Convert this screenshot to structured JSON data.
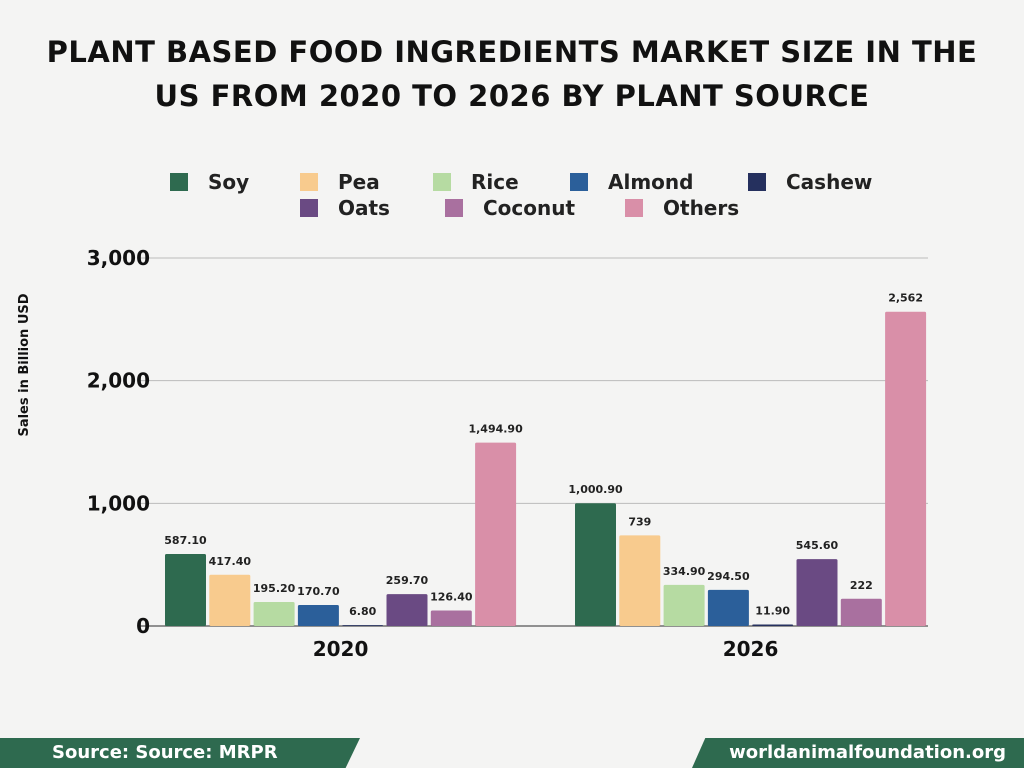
{
  "chart_data": {
    "type": "bar",
    "title": "PLANT BASED FOOD INGREDIENTS MARKET SIZE IN THE US FROM 2020 TO 2026 BY PLANT SOURCE",
    "ylabel": "Sales in Billion USD",
    "xlabel": "",
    "categories": [
      "2020",
      "2026"
    ],
    "ylim": [
      0,
      3000
    ],
    "yticks": [
      0,
      1000,
      2000,
      3000
    ],
    "ytick_labels": [
      "0",
      "1,000",
      "2,000",
      "3,000"
    ],
    "grid": true,
    "legend_position": "top",
    "series": [
      {
        "name": "Soy",
        "color": "#2e6a4f",
        "values": [
          587.1,
          1000.9
        ],
        "labels": [
          "587.10",
          "1,000.90"
        ]
      },
      {
        "name": "Pea",
        "color": "#f8cb8e",
        "values": [
          417.4,
          739
        ],
        "labels": [
          "417.40",
          "739"
        ]
      },
      {
        "name": "Rice",
        "color": "#b6dba2",
        "values": [
          195.2,
          334.9
        ],
        "labels": [
          "195.20",
          "334.90"
        ]
      },
      {
        "name": "Almond",
        "color": "#2b5f9a",
        "values": [
          170.7,
          294.5
        ],
        "labels": [
          "170.70",
          "294.50"
        ]
      },
      {
        "name": "Cashew",
        "color": "#25305e",
        "values": [
          6.8,
          11.9
        ],
        "labels": [
          "6.80",
          "11.90"
        ]
      },
      {
        "name": "Oats",
        "color": "#6a4a83",
        "values": [
          259.7,
          545.6
        ],
        "labels": [
          "259.70",
          "545.60"
        ]
      },
      {
        "name": "Coconut",
        "color": "#a9709f",
        "values": [
          126.4,
          222
        ],
        "labels": [
          "126.40",
          "222"
        ]
      },
      {
        "name": "Others",
        "color": "#d98fa8",
        "values": [
          1494.9,
          2562
        ],
        "labels": [
          "1,494.90",
          "2,562"
        ]
      }
    ]
  },
  "footer": {
    "source": "Source: Source: MRPR",
    "site": "worldanimalfoundation.org"
  }
}
